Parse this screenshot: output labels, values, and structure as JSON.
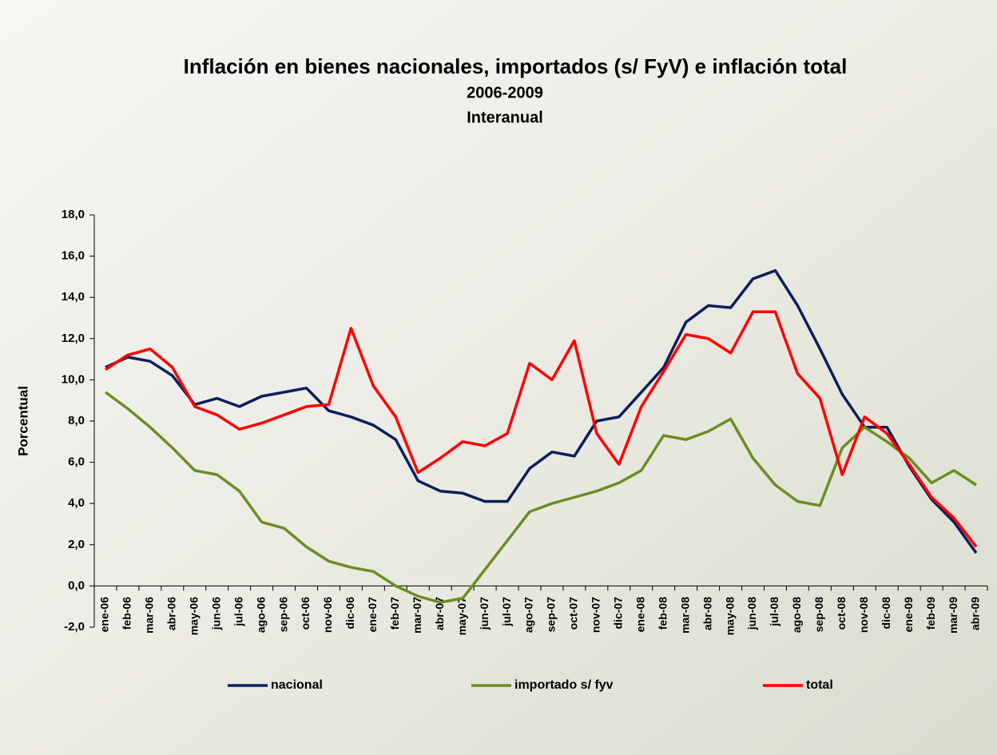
{
  "chart_data": {
    "type": "line",
    "title": "Inflación en bienes nacionales, importados (s/ FyV) e inflación total",
    "subtitle": "2006-2009",
    "subtitle2": "Interanual",
    "y_label": "Porcentual",
    "categories": [
      "ene-06",
      "feb-06",
      "mar-06",
      "abr-06",
      "may-06",
      "jun-06",
      "jul-06",
      "ago-06",
      "sep-06",
      "oct-06",
      "nov-06",
      "dic-06",
      "ene-07",
      "feb-07",
      "mar-07",
      "abr-07",
      "may-07",
      "jun-07",
      "jul-07",
      "ago-07",
      "sep-07",
      "oct-07",
      "nov-07",
      "dic-07",
      "ene-08",
      "feb-08",
      "mar-08",
      "abr-08",
      "may-08",
      "jun-08",
      "jul-08",
      "ago-08",
      "sep-08",
      "oct-08",
      "nov-08",
      "dic-08",
      "ene-09",
      "feb-09",
      "mar-09",
      "abr-09"
    ],
    "series": [
      {
        "name": "nacional",
        "color": "#0a1f5c",
        "values": [
          10.6,
          11.1,
          10.9,
          10.2,
          8.8,
          9.1,
          8.7,
          9.2,
          9.4,
          9.6,
          8.5,
          8.2,
          7.8,
          7.1,
          5.1,
          4.6,
          4.5,
          4.1,
          4.1,
          5.7,
          6.5,
          6.3,
          8.0,
          8.2,
          9.4,
          10.6,
          12.8,
          13.6,
          13.5,
          14.9,
          15.3,
          13.6,
          11.5,
          9.3,
          7.7,
          7.7,
          5.8,
          4.2,
          3.1,
          1.6
        ]
      },
      {
        "name": "importado s/ fyv",
        "color": "#6b8e23",
        "values": [
          9.4,
          8.6,
          7.7,
          6.7,
          5.6,
          5.4,
          4.6,
          3.1,
          2.8,
          1.9,
          1.2,
          0.9,
          0.7,
          0.0,
          -0.5,
          -0.8,
          -0.6,
          0.8,
          2.2,
          3.6,
          4.0,
          4.3,
          4.6,
          5.0,
          5.6,
          7.3,
          7.1,
          7.5,
          8.1,
          6.2,
          4.9,
          4.1,
          3.9,
          6.7,
          7.7,
          7.0,
          6.2,
          5.0,
          5.6,
          4.9
        ]
      },
      {
        "name": "total",
        "color": "#ff0000",
        "values": [
          10.5,
          11.2,
          11.5,
          10.6,
          8.7,
          8.3,
          7.6,
          7.9,
          8.3,
          8.7,
          8.8,
          12.5,
          9.7,
          8.2,
          5.5,
          6.2,
          7.0,
          6.8,
          7.4,
          10.8,
          10.0,
          11.9,
          7.4,
          5.9,
          8.7,
          10.4,
          12.2,
          12.0,
          11.3,
          13.3,
          13.3,
          10.3,
          9.1,
          5.4,
          8.2,
          7.4,
          5.9,
          4.3,
          3.3,
          1.9
        ]
      }
    ],
    "ylim": [
      -2,
      18
    ],
    "yticks": [
      {
        "value": -2,
        "label": "-2,0"
      },
      {
        "value": 0,
        "label": "0,0"
      },
      {
        "value": 2,
        "label": "2,0"
      },
      {
        "value": 4,
        "label": "4,0"
      },
      {
        "value": 6,
        "label": "6,0"
      },
      {
        "value": 8,
        "label": "8,0"
      },
      {
        "value": 10,
        "label": "10,0"
      },
      {
        "value": 12,
        "label": "12,0"
      },
      {
        "value": 14,
        "label": "14,0"
      },
      {
        "value": 16,
        "label": "16,0"
      },
      {
        "value": 18,
        "label": "18,0"
      }
    ],
    "legend": "bottom"
  }
}
